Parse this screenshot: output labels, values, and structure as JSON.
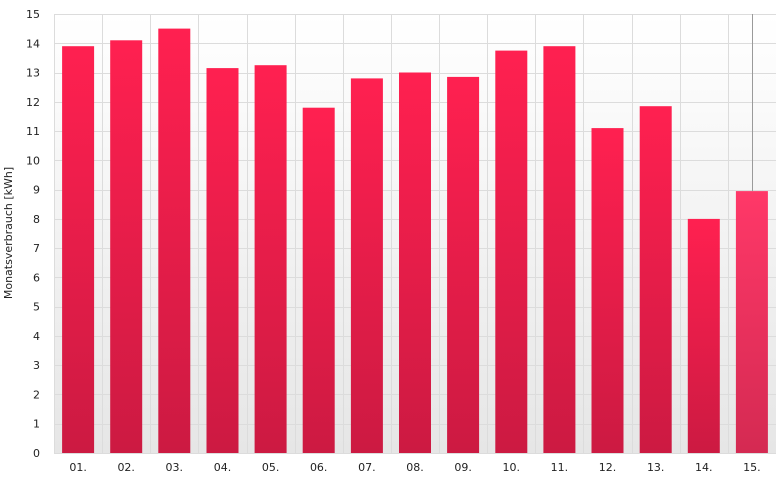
{
  "chart_data": {
    "type": "bar",
    "ylabel": "Monatsverbrauch [kWh]",
    "ylim": [
      0,
      15
    ],
    "yticks": [
      0,
      1,
      2,
      3,
      4,
      5,
      6,
      7,
      8,
      9,
      10,
      11,
      12,
      13,
      14,
      15
    ],
    "categories": [
      "01.",
      "02.",
      "03.",
      "04.",
      "05.",
      "06.",
      "07.",
      "08.",
      "09.",
      "10.",
      "11.",
      "12.",
      "13.",
      "14.",
      "15."
    ],
    "values": [
      13.9,
      14.1,
      14.5,
      13.15,
      13.25,
      11.8,
      12.8,
      13.0,
      12.85,
      13.75,
      13.9,
      11.1,
      11.85,
      8.0,
      8.95
    ],
    "grid": true,
    "colors": {
      "bar_top": "#ff2050",
      "bar_bottom": "#cc1a42",
      "highlight_top": "#ff3868",
      "highlight_bottom": "#d42a52",
      "background_top": "#ffffff",
      "background_bottom": "#e6e6e6",
      "grid": "#dcdcdc"
    },
    "highlighted_category": "15."
  }
}
